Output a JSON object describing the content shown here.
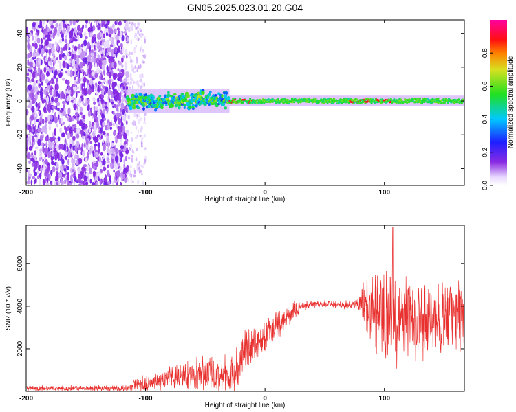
{
  "figure": {
    "title": "GN05.2025.023.01.20.G04"
  },
  "chart_data": [
    {
      "type": "heatmap",
      "xlabel": "Height of straight line (km)",
      "ylabel": "Frequency (Hz)",
      "xlim": [
        -200,
        167
      ],
      "ylim": [
        -50,
        48
      ],
      "xticks": [
        -200,
        -100,
        0,
        100
      ],
      "yticks": [
        -40,
        -20,
        0,
        20,
        40
      ],
      "grid": false,
      "colorbar": {
        "label": "Normalized spectral amplitude",
        "range": [
          0,
          1
        ],
        "ticks": [
          "0.0",
          "0.2",
          "0.4",
          "0.6",
          "0.8"
        ],
        "tick_values": [
          0.0,
          0.2,
          0.4,
          0.6,
          0.8
        ],
        "colormap": "rainbow (purple-blue-cyan-green-yellow-red-magenta)"
      },
      "features": {
        "noise_region_x": [
          -200,
          -115
        ],
        "scattered_sparse_region_x": [
          -115,
          -100
        ],
        "signal_band_center_hz": 0,
        "signal_band_wide_x": [
          -115,
          -30
        ],
        "signal_band_wide_halfwidth_hz": 4,
        "signal_band_narrow_x": [
          -30,
          167
        ],
        "signal_band_narrow_halfwidth_hz": 1.5,
        "peak_red_segments_x": [
          [
            -30,
            -10
          ],
          [
            70,
            110
          ]
        ]
      }
    },
    {
      "type": "line",
      "xlabel": "Height of straight line (km)",
      "ylabel": "SNR (10 * v/v)",
      "xlim": [
        -200,
        167
      ],
      "ylim": [
        0,
        7800
      ],
      "xticks": [
        -200,
        -100,
        0,
        100
      ],
      "yticks": [
        2000,
        4000,
        6000
      ],
      "grid": false,
      "series": [
        {
          "color": "#e8302e",
          "envelope": {
            "x": [
              -200,
              -120,
              -110,
              -90,
              -70,
              -50,
              -30,
              -22,
              -20,
              -10,
              0,
              10,
              20,
              25,
              30,
              40,
              50,
              60,
              70,
              78,
              82,
              90,
              100,
              110,
              120,
              130,
              140,
              150,
              160,
              167
            ],
            "mean": [
              150,
              150,
              250,
              500,
              700,
              900,
              700,
              1000,
              1900,
              2200,
              2600,
              3000,
              3500,
              3800,
              4000,
              4100,
              4100,
              4050,
              4050,
              4100,
              4200,
              4000,
              3700,
              3500,
              3300,
              3300,
              3300,
              3400,
              3500,
              3600
            ],
            "spread": [
              120,
              150,
              300,
              450,
              600,
              800,
              900,
              1200,
              900,
              900,
              800,
              700,
              500,
              400,
              250,
              200,
              180,
              180,
              200,
              250,
              900,
              1700,
              2200,
              2200,
              1800,
              1700,
              1700,
              1700,
              1700,
              1700
            ]
          },
          "peak": {
            "x": 107,
            "y": 7700
          }
        }
      ]
    }
  ]
}
